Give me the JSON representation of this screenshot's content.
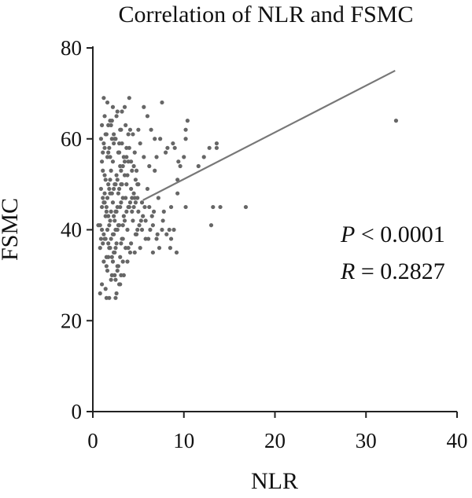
{
  "chart_data": {
    "type": "scatter",
    "title": "Correlation of NLR and FSMC",
    "xlabel": "NLR",
    "ylabel": "FSMC",
    "xlim": [
      0,
      40
    ],
    "ylim": [
      0,
      80
    ],
    "x_ticks": [
      "0",
      "10",
      "20",
      "30",
      "40"
    ],
    "y_ticks": [
      "0",
      "20",
      "40",
      "60",
      "80"
    ],
    "grid": false,
    "annotations": {
      "p_symbol": "P",
      "p_text": " < 0.0001",
      "r_symbol": "R",
      "r_text": " = 0.2827"
    },
    "fit_line": {
      "x": [
        5.5,
        33.2
      ],
      "y": [
        46.5,
        75.0
      ]
    },
    "point_color": "#666666",
    "line_color": "#777777",
    "points": [
      [
        33.3,
        64
      ],
      [
        16.8,
        45
      ],
      [
        14.0,
        45
      ],
      [
        13.2,
        45
      ],
      [
        13.0,
        41
      ],
      [
        13.6,
        59
      ],
      [
        13.6,
        58
      ],
      [
        12.8,
        58
      ],
      [
        12.2,
        56
      ],
      [
        11.6,
        54
      ],
      [
        10.4,
        64
      ],
      [
        10.2,
        62
      ],
      [
        10.2,
        60
      ],
      [
        10.2,
        45
      ],
      [
        10.0,
        56
      ],
      [
        9.6,
        54
      ],
      [
        9.4,
        55
      ],
      [
        9.3,
        51
      ],
      [
        9.3,
        48
      ],
      [
        9.2,
        35
      ],
      [
        9.0,
        58
      ],
      [
        8.8,
        59
      ],
      [
        8.6,
        45
      ],
      [
        8.6,
        38
      ],
      [
        8.4,
        40
      ],
      [
        8.2,
        58
      ],
      [
        8.0,
        57
      ],
      [
        7.8,
        44
      ],
      [
        7.6,
        40
      ],
      [
        7.6,
        68
      ],
      [
        7.4,
        60
      ],
      [
        7.2,
        47
      ],
      [
        7.0,
        56
      ],
      [
        7.0,
        38
      ],
      [
        6.8,
        60
      ],
      [
        6.8,
        53
      ],
      [
        6.6,
        41
      ],
      [
        6.6,
        35
      ],
      [
        6.4,
        62
      ],
      [
        6.2,
        54
      ],
      [
        6.2,
        45
      ],
      [
        6.0,
        49
      ],
      [
        6.0,
        65
      ],
      [
        5.8,
        42
      ],
      [
        5.8,
        38
      ],
      [
        5.6,
        67
      ],
      [
        5.6,
        56
      ],
      [
        5.4,
        46
      ],
      [
        5.4,
        40
      ],
      [
        5.2,
        59
      ],
      [
        5.2,
        36
      ],
      [
        5.0,
        62
      ],
      [
        5.0,
        50
      ],
      [
        5.0,
        44
      ],
      [
        4.8,
        53
      ],
      [
        4.8,
        39
      ],
      [
        4.6,
        57
      ],
      [
        4.6,
        47
      ],
      [
        4.6,
        35
      ],
      [
        4.4,
        61
      ],
      [
        4.4,
        42
      ],
      [
        4.2,
        55
      ],
      [
        4.2,
        49
      ],
      [
        4.2,
        37
      ],
      [
        4.0,
        69
      ],
      [
        4.0,
        58
      ],
      [
        4.0,
        45
      ],
      [
        3.8,
        52
      ],
      [
        3.8,
        40
      ],
      [
        3.8,
        33
      ],
      [
        3.6,
        63
      ],
      [
        3.6,
        47
      ],
      [
        3.6,
        36
      ],
      [
        3.4,
        56
      ],
      [
        3.4,
        43
      ],
      [
        3.4,
        30
      ],
      [
        3.2,
        66
      ],
      [
        3.2,
        59
      ],
      [
        3.2,
        50
      ],
      [
        3.2,
        38
      ],
      [
        3.0,
        62
      ],
      [
        3.0,
        54
      ],
      [
        3.0,
        45
      ],
      [
        3.0,
        34
      ],
      [
        3.0,
        28
      ],
      [
        2.8,
        57
      ],
      [
        2.8,
        48
      ],
      [
        2.8,
        41
      ],
      [
        2.8,
        32
      ],
      [
        2.6,
        65
      ],
      [
        2.6,
        52
      ],
      [
        2.6,
        44
      ],
      [
        2.6,
        37
      ],
      [
        2.6,
        26
      ],
      [
        2.4,
        60
      ],
      [
        2.4,
        50
      ],
      [
        2.4,
        42
      ],
      [
        2.4,
        35
      ],
      [
        2.4,
        30
      ],
      [
        2.2,
        67
      ],
      [
        2.2,
        55
      ],
      [
        2.2,
        46
      ],
      [
        2.2,
        39
      ],
      [
        2.2,
        33
      ],
      [
        2.0,
        63
      ],
      [
        2.0,
        53
      ],
      [
        2.0,
        44
      ],
      [
        2.0,
        38
      ],
      [
        2.0,
        29
      ],
      [
        1.8,
        58
      ],
      [
        1.8,
        49
      ],
      [
        1.8,
        41
      ],
      [
        1.8,
        36
      ],
      [
        1.8,
        25
      ],
      [
        1.6,
        68
      ],
      [
        1.6,
        56
      ],
      [
        1.6,
        47
      ],
      [
        1.6,
        40
      ],
      [
        1.6,
        31
      ],
      [
        1.4,
        61
      ],
      [
        1.4,
        51
      ],
      [
        1.4,
        43
      ],
      [
        1.4,
        38
      ],
      [
        1.4,
        27
      ],
      [
        1.2,
        69
      ],
      [
        1.2,
        59
      ],
      [
        1.2,
        46
      ],
      [
        1.2,
        39
      ],
      [
        1.2,
        33
      ],
      [
        1.0,
        63
      ],
      [
        1.0,
        55
      ],
      [
        1.0,
        45
      ],
      [
        1.0,
        40
      ],
      [
        1.0,
        28
      ],
      [
        0.8,
        41
      ],
      [
        0.8,
        36
      ],
      [
        0.8,
        26
      ],
      [
        0.6,
        41
      ],
      [
        1.5,
        25
      ],
      [
        2.5,
        25
      ],
      [
        2.9,
        28
      ],
      [
        3.1,
        30
      ],
      [
        2.7,
        31
      ],
      [
        2.1,
        34
      ],
      [
        1.9,
        36
      ],
      [
        1.7,
        37
      ],
      [
        1.3,
        38
      ],
      [
        1.1,
        37
      ],
      [
        0.9,
        38
      ],
      [
        2.3,
        39
      ],
      [
        2.5,
        40
      ],
      [
        2.7,
        40
      ],
      [
        2.9,
        41
      ],
      [
        3.3,
        41
      ],
      [
        3.5,
        42
      ],
      [
        1.9,
        42
      ],
      [
        1.7,
        43
      ],
      [
        1.5,
        44
      ],
      [
        3.7,
        44
      ],
      [
        3.9,
        45
      ],
      [
        4.1,
        46
      ],
      [
        4.3,
        47
      ],
      [
        4.5,
        48
      ],
      [
        2.1,
        48
      ],
      [
        2.3,
        49
      ],
      [
        2.5,
        50
      ],
      [
        2.7,
        51
      ],
      [
        1.3,
        52
      ],
      [
        1.1,
        53
      ],
      [
        3.1,
        53
      ],
      [
        3.3,
        54
      ],
      [
        3.5,
        55
      ],
      [
        1.9,
        56
      ],
      [
        1.7,
        57
      ],
      [
        2.9,
        57
      ],
      [
        3.7,
        58
      ],
      [
        2.3,
        59
      ],
      [
        2.5,
        60
      ],
      [
        1.5,
        61
      ],
      [
        3.9,
        61
      ],
      [
        4.1,
        62
      ],
      [
        2.1,
        64
      ],
      [
        1.3,
        65
      ],
      [
        2.7,
        66
      ],
      [
        3.5,
        67
      ],
      [
        1.5,
        34
      ],
      [
        2.3,
        35
      ],
      [
        2.5,
        36
      ],
      [
        3.1,
        37
      ],
      [
        3.3,
        38
      ],
      [
        4.7,
        39
      ],
      [
        4.9,
        40
      ],
      [
        5.1,
        41
      ],
      [
        5.3,
        42
      ],
      [
        5.5,
        43
      ],
      [
        4.3,
        44
      ],
      [
        4.5,
        45
      ],
      [
        5.7,
        45
      ],
      [
        4.7,
        46
      ],
      [
        4.9,
        47
      ],
      [
        1.1,
        47
      ],
      [
        1.3,
        48
      ],
      [
        0.9,
        49
      ],
      [
        1.7,
        50
      ],
      [
        1.9,
        51
      ],
      [
        3.5,
        52
      ],
      [
        4.7,
        51
      ],
      [
        4.9,
        50
      ],
      [
        4.3,
        53
      ],
      [
        4.5,
        54
      ],
      [
        3.9,
        55
      ],
      [
        3.7,
        56
      ],
      [
        1.1,
        57
      ],
      [
        1.3,
        58
      ],
      [
        2.9,
        59
      ],
      [
        0.9,
        60
      ],
      [
        2.1,
        60
      ],
      [
        2.3,
        61
      ],
      [
        3.1,
        62
      ],
      [
        1.7,
        63
      ],
      [
        1.9,
        64
      ],
      [
        2.5,
        29
      ],
      [
        2.7,
        32
      ],
      [
        3.3,
        33
      ],
      [
        2.1,
        30
      ],
      [
        1.5,
        32
      ],
      [
        1.7,
        34
      ],
      [
        3.9,
        36
      ],
      [
        4.1,
        35
      ],
      [
        2.3,
        43
      ],
      [
        2.5,
        44
      ],
      [
        2.7,
        45
      ],
      [
        1.5,
        45
      ],
      [
        1.3,
        46
      ],
      [
        3.1,
        46
      ],
      [
        3.3,
        47
      ],
      [
        1.9,
        48
      ],
      [
        2.9,
        49
      ],
      [
        3.1,
        50
      ],
      [
        3.7,
        50
      ],
      [
        6.1,
        38
      ],
      [
        6.3,
        40
      ],
      [
        6.5,
        43
      ],
      [
        6.7,
        44
      ],
      [
        7.1,
        39
      ],
      [
        7.3,
        36
      ],
      [
        7.7,
        42
      ],
      [
        8.1,
        39
      ],
      [
        8.5,
        36
      ],
      [
        8.9,
        40
      ]
    ]
  }
}
